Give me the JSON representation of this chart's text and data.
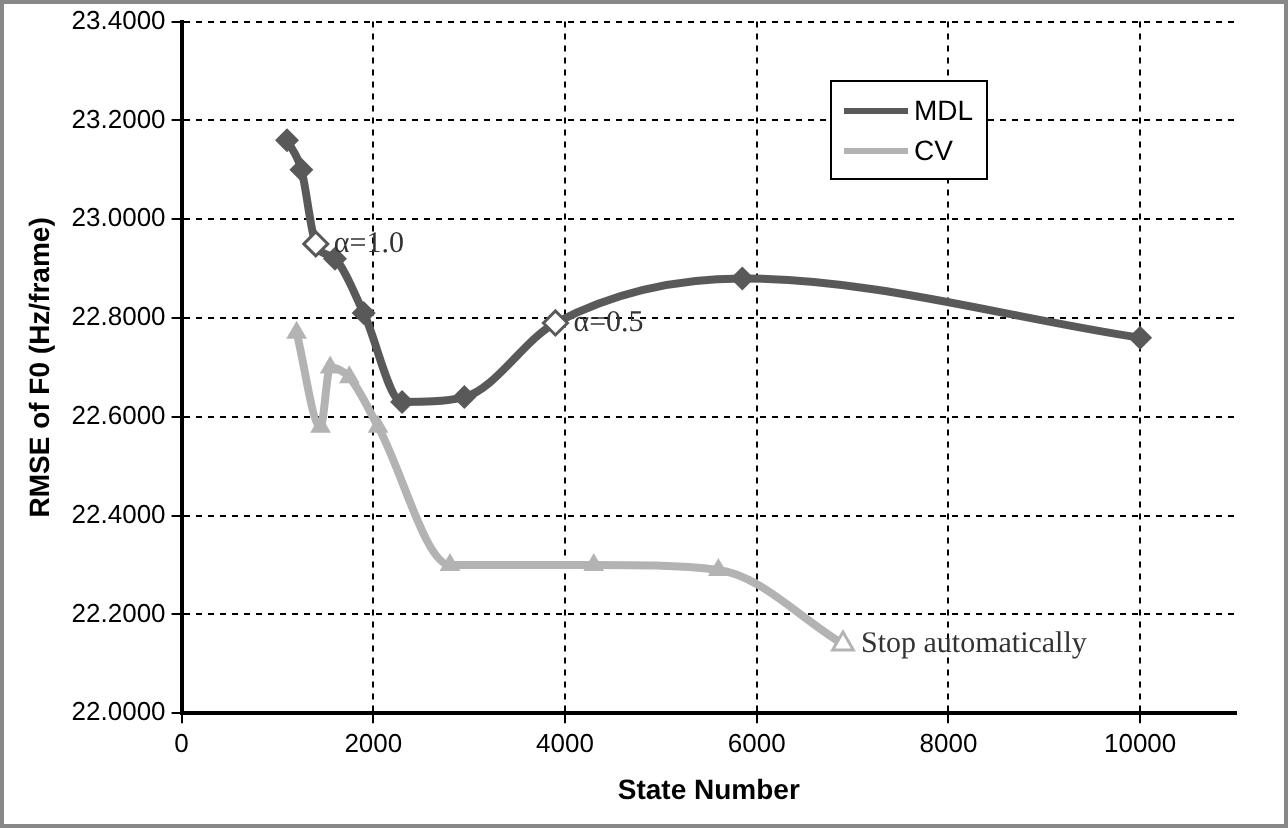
{
  "chart_data": {
    "type": "line",
    "xlabel": "State Number",
    "ylabel": "RMSE of F0 (Hz/frame)",
    "xlim": [
      0,
      11000
    ],
    "xticks": [
      0,
      2000,
      4000,
      6000,
      8000,
      10000
    ],
    "ylim": [
      22.0,
      23.4
    ],
    "yticks": [
      {
        "value": 22.0,
        "label": "22.0000"
      },
      {
        "value": 22.2,
        "label": "22.2000"
      },
      {
        "value": 22.4,
        "label": "22.4000"
      },
      {
        "value": 22.6,
        "label": "22.6000"
      },
      {
        "value": 22.8,
        "label": "22.8000"
      },
      {
        "value": 23.0,
        "label": "23.0000"
      },
      {
        "value": 23.2,
        "label": "23.2000"
      },
      {
        "value": 23.4,
        "label": "23.4000"
      }
    ],
    "grid": true,
    "legend": "top right",
    "line_style": "solid",
    "series": [
      {
        "name": "MDL",
        "color": "#595959",
        "marker": "diamond",
        "x": [
          1100,
          1250,
          1400,
          1600,
          1900,
          2300,
          2950,
          3900,
          5850,
          10000
        ],
        "values": [
          23.16,
          23.1,
          22.95,
          22.92,
          22.81,
          22.63,
          22.64,
          22.79,
          22.88,
          22.76
        ]
      },
      {
        "name": "CV",
        "color": "#b3b3b3",
        "marker": "triangle",
        "x": [
          1200,
          1450,
          1550,
          1750,
          2050,
          2800,
          4300,
          5600,
          6900
        ],
        "values": [
          22.77,
          22.58,
          22.7,
          22.68,
          22.58,
          22.3,
          22.3,
          22.29,
          22.14
        ]
      }
    ],
    "annotations": [
      {
        "text": "α=1.0",
        "x": 1400,
        "y": 22.95
      },
      {
        "text": "α=0.5",
        "x": 3900,
        "y": 22.79
      },
      {
        "text": "Stop automatically",
        "x": 6900,
        "y": 22.14
      }
    ]
  }
}
